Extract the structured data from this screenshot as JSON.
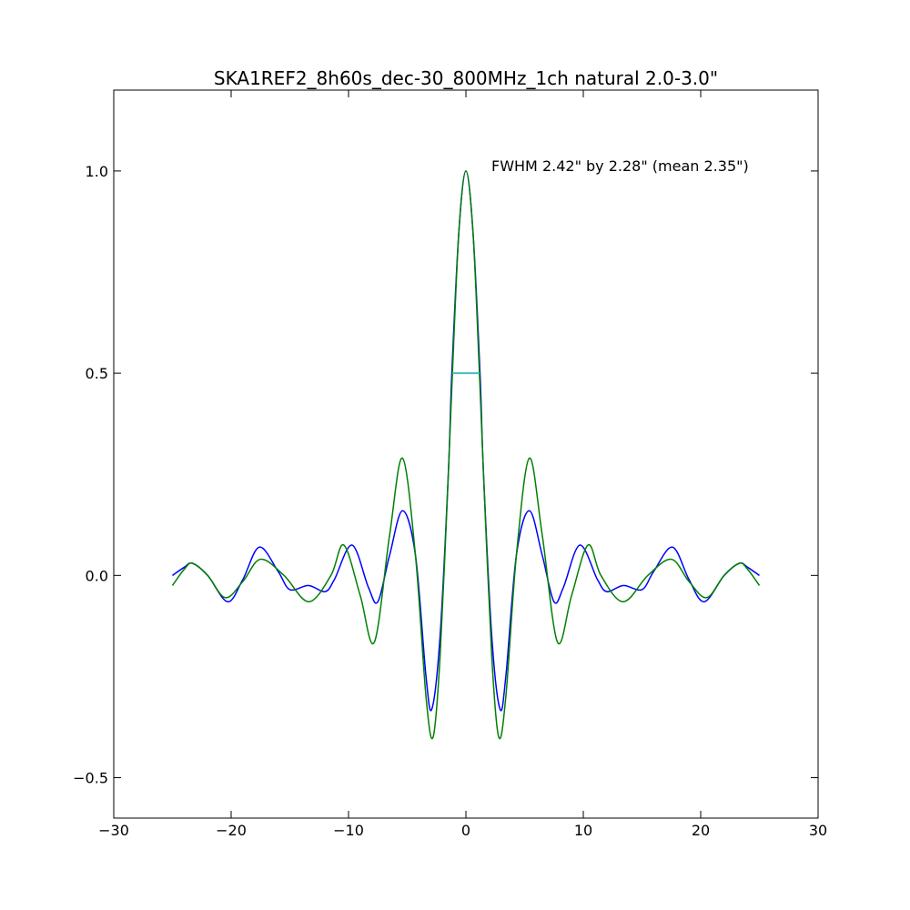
{
  "chart_data": {
    "type": "line",
    "title": "SKA1REF2_8h60s_dec-30_800MHz_1ch natural  2.0-3.0\"",
    "annotation": "FWHM 2.42\" by 2.28\" (mean 2.35\")",
    "xlim": [
      -30,
      30
    ],
    "ylim": [
      -0.6,
      1.2
    ],
    "x_ticks": [
      -30,
      -20,
      -10,
      0,
      10,
      20,
      30
    ],
    "x_tick_labels": [
      "−30",
      "−20",
      "−10",
      "0",
      "10",
      "20",
      "30"
    ],
    "y_ticks": [
      -0.5,
      0.0,
      0.5,
      1.0
    ],
    "y_tick_labels": [
      "−0.5",
      "0.0",
      "0.5",
      "1.0"
    ],
    "grid": false,
    "fwhm_marker": {
      "x": [
        -1.15,
        1.15
      ],
      "y": 0.5,
      "color": "#3fbfbf"
    },
    "series": [
      {
        "color": "#0000ff",
        "x": [
          -25,
          -24,
          -23.3,
          -22,
          -20.3,
          -19,
          -17.6,
          -16,
          -15,
          -13.4,
          -12,
          -11.2,
          -9.7,
          -8.3,
          -7.5,
          -6.5,
          -5.4,
          -4.3,
          -3.4,
          -2.9,
          -2.2,
          -1.5,
          -1.2,
          -0.6,
          0,
          0.6,
          1.2,
          1.5,
          2.2,
          2.9,
          3.4,
          4.3,
          5.4,
          6.5,
          7.5,
          8.3,
          9.7,
          11.2,
          12,
          13.4,
          15,
          16,
          17.6,
          19,
          20.3,
          22,
          23.3,
          24,
          25
        ],
        "y": [
          0.0,
          0.02,
          0.03,
          0.0,
          -0.065,
          -0.01,
          0.07,
          0.01,
          -0.035,
          -0.025,
          -0.04,
          -0.01,
          0.075,
          -0.03,
          -0.065,
          0.05,
          0.16,
          0.05,
          -0.25,
          -0.33,
          -0.15,
          0.25,
          0.5,
          0.85,
          1.0,
          0.85,
          0.5,
          0.25,
          -0.15,
          -0.33,
          -0.25,
          0.05,
          0.16,
          0.05,
          -0.065,
          -0.03,
          0.075,
          -0.01,
          -0.04,
          -0.025,
          -0.035,
          0.01,
          0.07,
          -0.01,
          -0.065,
          0.0,
          0.03,
          0.02,
          0.0
        ]
      },
      {
        "color": "#008000",
        "x": [
          -25,
          -24,
          -23.3,
          -22,
          -20.5,
          -19,
          -17.5,
          -15.5,
          -13.4,
          -11.5,
          -10.4,
          -9,
          -7.8,
          -6.5,
          -5.4,
          -4.3,
          -3.4,
          -2.8,
          -2.2,
          -1.5,
          -1.15,
          -0.6,
          0,
          0.6,
          1.15,
          1.5,
          2.2,
          2.8,
          3.4,
          4.3,
          5.4,
          6.5,
          7.8,
          9,
          10.4,
          11.5,
          13.4,
          15.5,
          17.5,
          19,
          20.5,
          22,
          23.3,
          24,
          25
        ],
        "y": [
          -0.025,
          0.015,
          0.03,
          0.0,
          -0.055,
          -0.015,
          0.04,
          0.0,
          -0.065,
          0.0,
          0.075,
          -0.05,
          -0.165,
          0.1,
          0.29,
          0.05,
          -0.3,
          -0.4,
          -0.2,
          0.25,
          0.5,
          0.85,
          1.0,
          0.85,
          0.5,
          0.25,
          -0.2,
          -0.4,
          -0.3,
          0.05,
          0.29,
          0.1,
          -0.165,
          -0.05,
          0.075,
          0.0,
          -0.065,
          0.0,
          0.04,
          -0.015,
          -0.055,
          0.0,
          0.03,
          0.015,
          -0.025
        ]
      }
    ]
  }
}
